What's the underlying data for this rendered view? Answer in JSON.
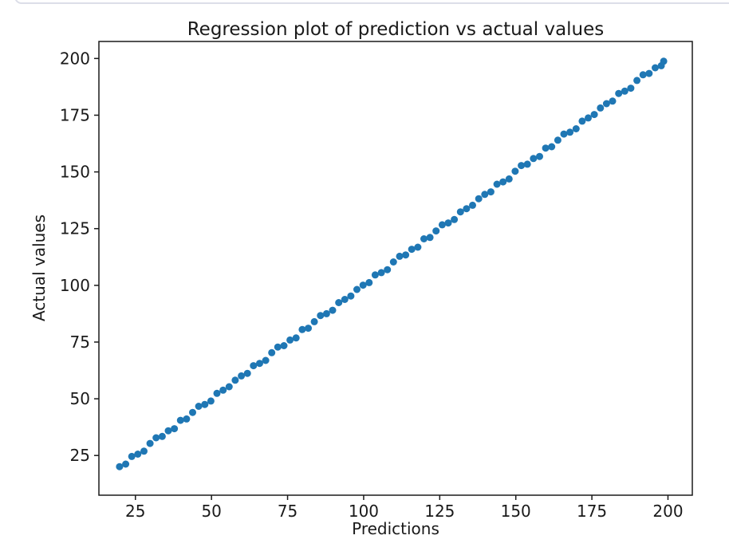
{
  "page": {
    "background": "#ffffff",
    "card_border_color": "#dcdee8"
  },
  "chart_data": {
    "type": "scatter",
    "title": "Regression plot of prediction vs actual values",
    "xlabel": "Predictions",
    "ylabel": "Actual values",
    "xlim": [
      13,
      208
    ],
    "ylim": [
      7.5,
      207.5
    ],
    "xticks": [
      25,
      50,
      75,
      100,
      125,
      150,
      175,
      200
    ],
    "yticks": [
      25,
      50,
      75,
      100,
      125,
      150,
      175,
      200
    ],
    "grid": false,
    "legend": null,
    "axis_color": "#1a1a1a",
    "marker_color": "#1f77b4",
    "marker_radius_px": 4.5,
    "series": [
      {
        "name": "prediction-vs-actual",
        "points": [
          [
            19.8,
            20.1
          ],
          [
            21.8,
            21.2
          ],
          [
            23.8,
            24.6
          ],
          [
            25.8,
            25.6
          ],
          [
            27.8,
            26.9
          ],
          [
            29.8,
            30.3
          ],
          [
            31.8,
            32.8
          ],
          [
            33.8,
            33.4
          ],
          [
            35.8,
            35.9
          ],
          [
            37.8,
            36.8
          ],
          [
            39.8,
            40.5
          ],
          [
            41.8,
            41.1
          ],
          [
            43.8,
            44.0
          ],
          [
            45.8,
            46.7
          ],
          [
            47.8,
            47.5
          ],
          [
            49.8,
            49.0
          ],
          [
            51.8,
            52.4
          ],
          [
            53.8,
            53.8
          ],
          [
            55.8,
            55.3
          ],
          [
            57.8,
            58.2
          ],
          [
            59.8,
            60.1
          ],
          [
            61.8,
            61.2
          ],
          [
            63.8,
            64.6
          ],
          [
            65.8,
            65.6
          ],
          [
            67.8,
            66.9
          ],
          [
            69.8,
            70.3
          ],
          [
            71.8,
            72.8
          ],
          [
            73.8,
            73.4
          ],
          [
            75.8,
            75.9
          ],
          [
            77.8,
            76.8
          ],
          [
            79.8,
            80.5
          ],
          [
            81.8,
            81.1
          ],
          [
            83.8,
            84.0
          ],
          [
            85.8,
            86.7
          ],
          [
            87.8,
            87.5
          ],
          [
            89.8,
            89.0
          ],
          [
            91.8,
            92.4
          ],
          [
            93.8,
            93.8
          ],
          [
            95.8,
            95.3
          ],
          [
            97.8,
            98.2
          ],
          [
            99.8,
            100.1
          ],
          [
            101.8,
            101.2
          ],
          [
            103.8,
            104.6
          ],
          [
            105.8,
            105.6
          ],
          [
            107.8,
            106.9
          ],
          [
            109.8,
            110.3
          ],
          [
            111.8,
            112.8
          ],
          [
            113.8,
            113.4
          ],
          [
            115.8,
            115.9
          ],
          [
            117.8,
            116.8
          ],
          [
            119.8,
            120.5
          ],
          [
            121.8,
            121.1
          ],
          [
            123.8,
            124.0
          ],
          [
            125.8,
            126.7
          ],
          [
            127.8,
            127.5
          ],
          [
            129.8,
            129.0
          ],
          [
            131.8,
            132.4
          ],
          [
            133.8,
            133.8
          ],
          [
            135.8,
            135.3
          ],
          [
            137.8,
            138.2
          ],
          [
            139.8,
            140.1
          ],
          [
            141.8,
            141.2
          ],
          [
            143.8,
            144.6
          ],
          [
            145.8,
            145.6
          ],
          [
            147.8,
            146.9
          ],
          [
            149.8,
            150.3
          ],
          [
            151.8,
            152.8
          ],
          [
            153.8,
            153.4
          ],
          [
            155.8,
            155.9
          ],
          [
            157.8,
            156.8
          ],
          [
            159.8,
            160.5
          ],
          [
            161.8,
            161.1
          ],
          [
            163.8,
            164.0
          ],
          [
            165.8,
            166.7
          ],
          [
            167.8,
            167.5
          ],
          [
            169.8,
            169.0
          ],
          [
            171.8,
            172.4
          ],
          [
            173.8,
            173.8
          ],
          [
            175.8,
            175.3
          ],
          [
            177.8,
            178.2
          ],
          [
            179.8,
            180.1
          ],
          [
            181.8,
            181.2
          ],
          [
            183.8,
            184.6
          ],
          [
            185.8,
            185.6
          ],
          [
            187.8,
            186.9
          ],
          [
            189.8,
            190.3
          ],
          [
            191.8,
            192.8
          ],
          [
            193.8,
            193.4
          ],
          [
            195.8,
            195.9
          ],
          [
            197.8,
            196.8
          ],
          [
            198.6,
            198.8
          ]
        ]
      }
    ]
  }
}
